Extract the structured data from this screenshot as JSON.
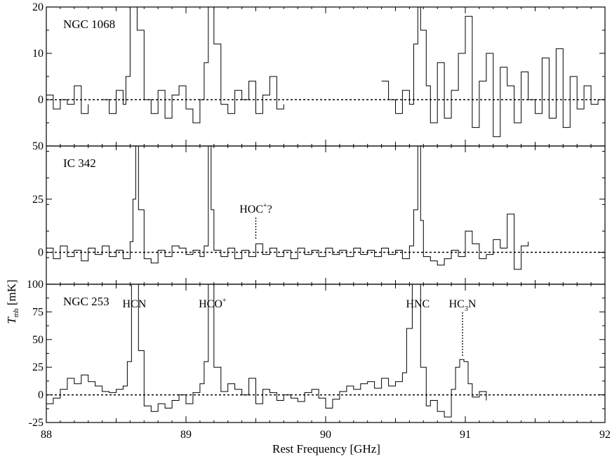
{
  "chart_data": {
    "type": "line",
    "xlabel": "Rest Frequency [GHz]",
    "ylabel_main": "T",
    "ylabel_sub": "mb",
    "ylabel_unit": " [mK]",
    "xlim": [
      88,
      92
    ],
    "xticks": [
      88,
      89,
      90,
      91,
      92
    ],
    "panels": [
      {
        "name": "NGC 1068",
        "ylim": [
          -10,
          20
        ],
        "yticks": [
          0,
          10,
          20
        ],
        "ytick_labels": {
          "0": "0",
          "10": "10",
          "20": "20"
        },
        "baseline": 0,
        "segments": [
          {
            "x": [
              88.0,
              88.05,
              88.1,
              88.15,
              88.2,
              88.25,
              88.3
            ],
            "y": [
              1,
              -2,
              0,
              -1,
              3,
              -3,
              -1
            ]
          },
          {
            "x": [
              88.4,
              88.45,
              88.5,
              88.55,
              88.57,
              88.6,
              88.63,
              88.65,
              88.7,
              88.75,
              88.8,
              88.85,
              88.9,
              88.95,
              89.0,
              89.05,
              89.1,
              89.13,
              89.16,
              89.18,
              89.2,
              89.25,
              89.3,
              89.35,
              89.4,
              89.45,
              89.5,
              89.55,
              89.6,
              89.65,
              89.7
            ],
            "y": [
              0,
              -3,
              2,
              -1,
              5,
              20,
              20,
              15,
              0,
              -3,
              2,
              -4,
              1,
              3,
              -2,
              -5,
              0,
              8,
              20,
              20,
              12,
              -1,
              -3,
              2,
              0,
              4,
              -3,
              1,
              5,
              -2,
              -1
            ]
          },
          {
            "x": [
              90.4,
              90.45,
              90.5,
              90.55,
              90.6,
              90.63,
              90.66,
              90.68,
              90.72,
              90.75,
              90.8,
              90.85,
              90.9,
              90.95,
              91.0,
              91.05,
              91.1,
              91.15,
              91.2,
              91.25,
              91.3,
              91.35,
              91.4,
              91.45,
              91.5,
              91.55,
              91.6,
              91.65,
              91.7,
              91.75,
              91.8,
              91.85,
              91.9,
              91.95,
              92.0
            ],
            "y": [
              4,
              0,
              -3,
              2,
              -1,
              12,
              20,
              15,
              3,
              -5,
              8,
              -4,
              2,
              10,
              18,
              -6,
              4,
              10,
              -8,
              7,
              3,
              -5,
              6,
              0,
              -3,
              9,
              -4,
              11,
              -6,
              5,
              -2,
              3,
              -1,
              0,
              4
            ]
          }
        ]
      },
      {
        "name": "IC 342",
        "ylim": [
          -15,
          50
        ],
        "yticks": [
          0,
          25,
          50
        ],
        "ytick_labels": {
          "0": "0",
          "25": "25",
          "50": "50"
        },
        "baseline": 0,
        "segments": [
          {
            "x": [
              88.0,
              88.05,
              88.1,
              88.15,
              88.2,
              88.25,
              88.3,
              88.35,
              88.4,
              88.45,
              88.5,
              88.55,
              88.6,
              88.62,
              88.64,
              88.66,
              88.7,
              88.75,
              88.8,
              88.85,
              88.9,
              88.95,
              89.0,
              89.05,
              89.1,
              89.13,
              89.16,
              89.18,
              89.2,
              89.25,
              89.3,
              89.35,
              89.4,
              89.45,
              89.5,
              89.55,
              89.6,
              89.65,
              89.7,
              89.75,
              89.8,
              89.85,
              89.9,
              89.95,
              90.0,
              90.05,
              90.1,
              90.15,
              90.2,
              90.25,
              90.3,
              90.35,
              90.4,
              90.45,
              90.5,
              90.55,
              90.6,
              90.63,
              90.66,
              90.68,
              90.7,
              90.75,
              90.8,
              90.85,
              90.9,
              90.95,
              91.0,
              91.05,
              91.1,
              91.15,
              91.2,
              91.25,
              91.3,
              91.35,
              91.4,
              91.45
            ],
            "y": [
              2,
              -3,
              3,
              -2,
              1,
              -4,
              2,
              -1,
              3,
              -2,
              1,
              -3,
              5,
              25,
              50,
              20,
              -3,
              -5,
              1,
              -2,
              3,
              2,
              -1,
              1,
              -2,
              3,
              50,
              20,
              1,
              -2,
              2,
              -3,
              1,
              -2,
              4,
              -1,
              2,
              -2,
              1,
              -3,
              2,
              -1,
              1,
              -2,
              2,
              -1,
              1,
              -2,
              2,
              -1,
              1,
              -2,
              2,
              -1,
              1,
              -3,
              3,
              20,
              50,
              15,
              -2,
              -4,
              -6,
              -3,
              1,
              -2,
              10,
              4,
              -3,
              -1,
              6,
              2,
              18,
              -8,
              3,
              5
            ]
          }
        ]
      },
      {
        "name": "NGC 253",
        "ylim": [
          -25,
          100
        ],
        "yticks": [
          -25,
          0,
          25,
          50,
          75,
          100
        ],
        "ytick_labels": {
          "-25": "-25",
          "0": "0",
          "25": "25",
          "50": "50",
          "75": "75",
          "100": "100"
        },
        "baseline": 0,
        "segments": [
          {
            "x": [
              88.0,
              88.05,
              88.1,
              88.15,
              88.2,
              88.25,
              88.3,
              88.35,
              88.4,
              88.45,
              88.5,
              88.55,
              88.58,
              88.61,
              88.64,
              88.66,
              88.7,
              88.75,
              88.8,
              88.85,
              88.9,
              88.95,
              89.0,
              89.05,
              89.1,
              89.13,
              89.16,
              89.18,
              89.2,
              89.25,
              89.3,
              89.35,
              89.4,
              89.45,
              89.5,
              89.55,
              89.6,
              89.65,
              89.7,
              89.75,
              89.8,
              89.85,
              89.9,
              89.95,
              90.0,
              90.05,
              90.1,
              90.15,
              90.2,
              90.25,
              90.3,
              90.35,
              90.4,
              90.45,
              90.5,
              90.55,
              90.58,
              90.62,
              90.66,
              90.68,
              90.72,
              90.75,
              90.8,
              90.85,
              90.9,
              90.93,
              90.96,
              90.99,
              91.02,
              91.05,
              91.1,
              91.15
            ],
            "y": [
              -8,
              -3,
              5,
              15,
              10,
              18,
              12,
              8,
              3,
              2,
              5,
              8,
              30,
              100,
              100,
              40,
              -10,
              -15,
              -8,
              -12,
              -5,
              0,
              -8,
              2,
              10,
              30,
              100,
              100,
              25,
              3,
              10,
              5,
              0,
              15,
              -8,
              5,
              2,
              -5,
              0,
              -3,
              -6,
              2,
              5,
              -3,
              -12,
              -4,
              3,
              8,
              5,
              10,
              12,
              6,
              15,
              8,
              12,
              20,
              60,
              100,
              100,
              25,
              -10,
              -5,
              -15,
              -20,
              5,
              25,
              32,
              30,
              10,
              -2,
              3,
              -5
            ]
          }
        ]
      }
    ],
    "annotations": [
      {
        "text": "HOC",
        "sup": "+",
        "suffix": "?",
        "panel": 1,
        "x": 89.5,
        "y_peak": 5
      },
      {
        "text": "HCN",
        "panel": 2,
        "x": 88.63
      },
      {
        "text": "HCO",
        "sup": "+",
        "panel": 2,
        "x": 89.19
      },
      {
        "text": "HNC",
        "panel": 2,
        "x": 90.66
      },
      {
        "text": "HC",
        "sub": "3",
        "suffix": "N",
        "panel": 2,
        "x": 90.98,
        "y_peak": 32
      }
    ]
  }
}
